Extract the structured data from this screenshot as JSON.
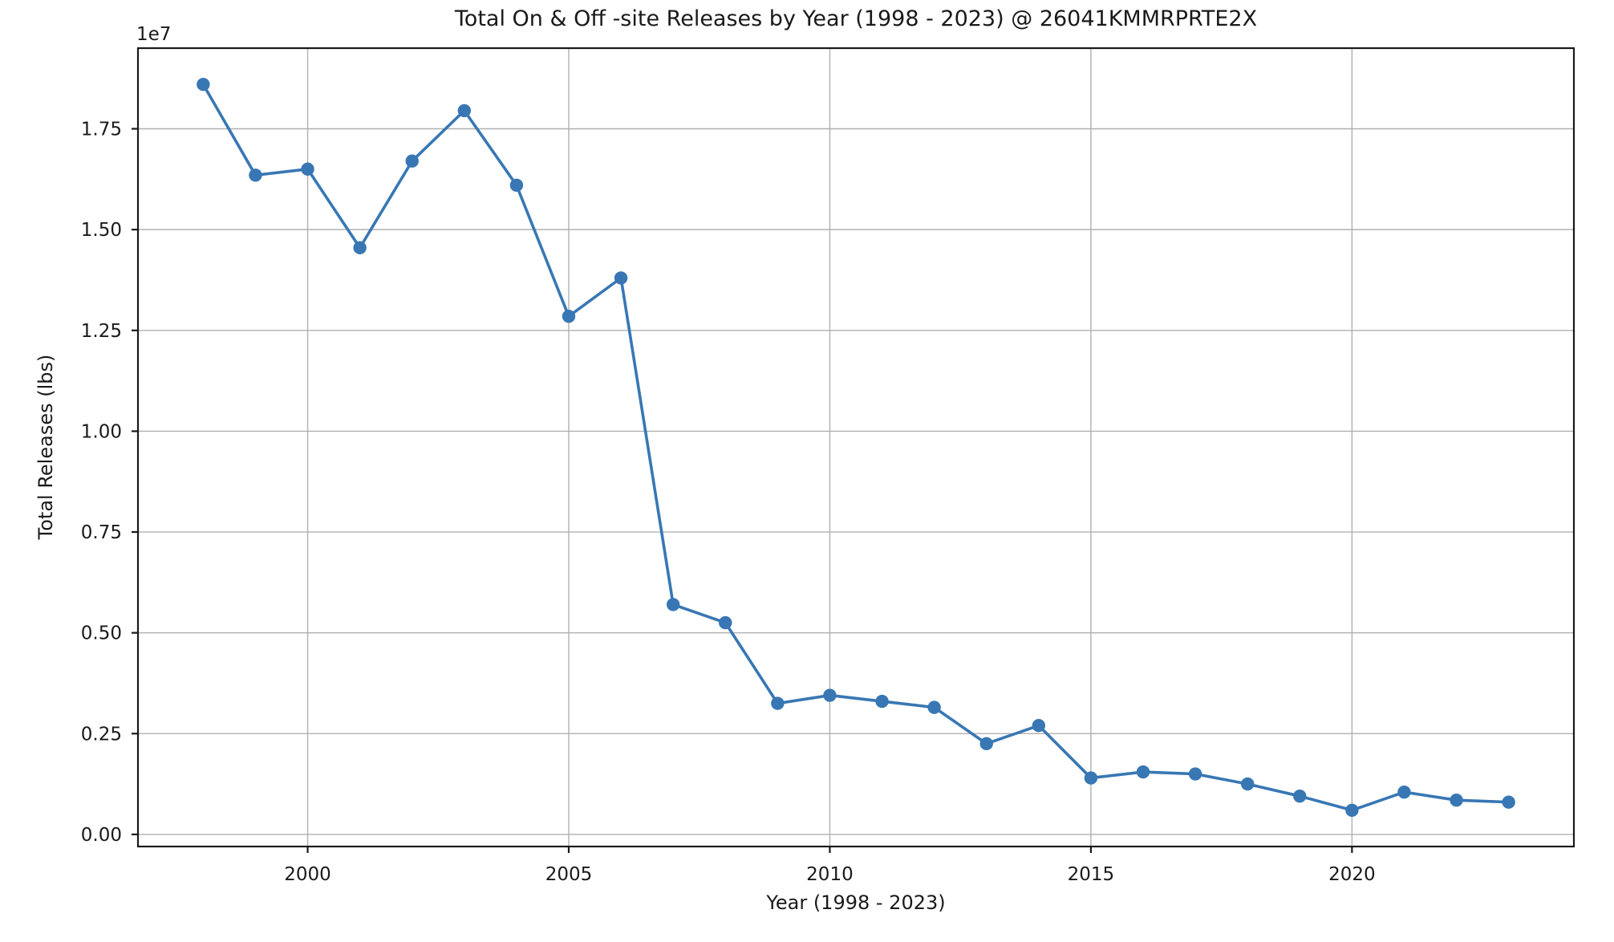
{
  "figure": {
    "background": "#ffffff"
  },
  "chart_data": {
    "type": "line",
    "title": "Total On & Off -site Releases by Year (1998 - 2023) @ 26041KMMRPRTE2X",
    "xlabel": "Year (1998 - 2023)",
    "ylabel": "Total Releases (lbs)",
    "y_offset_label": "1e7",
    "grid": true,
    "legend": null,
    "series": [
      {
        "name": "Total Releases",
        "x": [
          1998,
          1999,
          2000,
          2001,
          2002,
          2003,
          2004,
          2005,
          2006,
          2007,
          2008,
          2009,
          2010,
          2011,
          2012,
          2013,
          2014,
          2015,
          2016,
          2017,
          2018,
          2019,
          2020,
          2021,
          2022,
          2023
        ],
        "y": [
          18600000,
          16350000,
          16500000,
          14550000,
          16700000,
          17950000,
          16100000,
          12850000,
          13800000,
          5700000,
          5250000,
          3250000,
          3450000,
          3300000,
          3150000,
          2250000,
          2700000,
          1400000,
          1550000,
          1500000,
          1250000,
          950000,
          600000,
          1050000,
          850000,
          800000
        ]
      }
    ],
    "x_ticks": [
      2000,
      2005,
      2010,
      2015,
      2020
    ],
    "x_tick_labels": [
      "2000",
      "2005",
      "2010",
      "2015",
      "2020"
    ],
    "y_ticks": [
      0,
      2500000,
      5000000,
      7500000,
      10000000,
      12500000,
      15000000,
      17500000
    ],
    "y_tick_labels": [
      "0.00",
      "0.25",
      "0.50",
      "0.75",
      "1.00",
      "1.25",
      "1.50",
      "1.75"
    ],
    "xlim": [
      1996.75,
      2024.25
    ],
    "ylim": [
      -300000,
      19500000
    ],
    "line_color": "#3877b4",
    "marker": "o",
    "grid_color": "#b0b0b0",
    "spine_color": "#1a1a1a",
    "text_color": "#1a1a1a"
  }
}
